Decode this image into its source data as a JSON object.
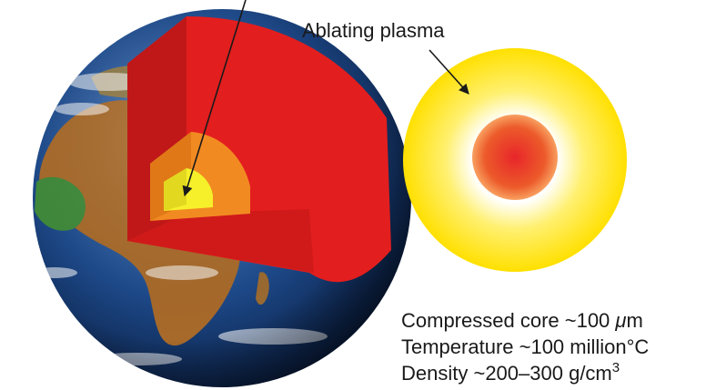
{
  "labels": {
    "plasma": "Ablating plasma"
  },
  "properties": {
    "core_prefix": "Compressed core ~100 ",
    "core_unit_symbol": "μ",
    "core_unit_rest": "m",
    "temperature": "Temperature ~100 million°C",
    "density_prefix": "Density ~200–300 g/cm",
    "density_exponent": "3"
  },
  "colors": {
    "plasma_outer": "#ffe400",
    "plasma_inner": "#ffffff",
    "core": "#e8432a",
    "earth_mantle": "#e82020",
    "earth_outer_core": "#f08a20",
    "earth_inner_core": "#f6f02a",
    "ocean": "#1d3f7a",
    "land": "#b0722e"
  }
}
